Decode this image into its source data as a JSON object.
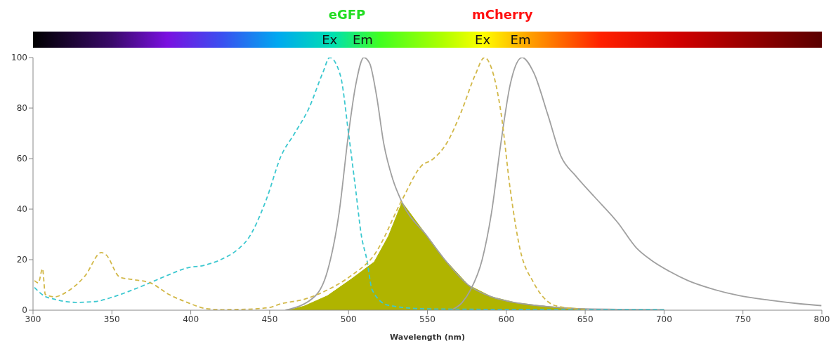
{
  "chart_data": {
    "type": "line",
    "xlabel": "Wavelength (nm)",
    "xlim": [
      300,
      800
    ],
    "xticks": [
      300,
      350,
      400,
      450,
      500,
      550,
      600,
      650,
      700,
      750,
      800
    ],
    "ylim": [
      0,
      100
    ],
    "yticks": [
      0,
      20,
      40,
      60,
      80,
      100
    ],
    "grid": false,
    "legend": false,
    "marker": "none",
    "annotations": [
      "eGFP",
      "mCherry",
      "Ex",
      "Em",
      "Ex",
      "Em"
    ],
    "series": [
      {
        "type": "area",
        "color": "#b0b400",
        "x": [
          462,
          471.8,
          486.6,
          501.5,
          516.3,
          525.3,
          533.9,
          549.8,
          561,
          576,
          590.6,
          605.5,
          625,
          650
        ],
        "values": [
          0,
          1.6,
          5.7,
          12.2,
          19.1,
          29.3,
          42.7,
          29.3,
          20,
          9.9,
          5.3,
          3,
          1.5,
          0.5
        ]
      },
      {
        "color": "#3cc8d0",
        "line_style": "dashed",
        "x": [
          300.9,
          307,
          314,
          327,
          339,
          351,
          363,
          374,
          386,
          398,
          408,
          419,
          431,
          436,
          448,
          457,
          465.8,
          474.7,
          483.7,
          488.1,
          494.8,
          500,
          504.5,
          508.2,
          511.6,
          515,
          525,
          550,
          600,
          700
        ],
        "values": [
          9,
          5.7,
          4.3,
          3.1,
          3.4,
          5.3,
          8,
          10.8,
          14,
          16.8,
          17.7,
          20,
          24.7,
          28,
          44,
          60.7,
          70,
          79.7,
          94,
          100,
          93,
          70,
          47.8,
          29.3,
          20,
          8,
          2,
          0.5,
          0.3,
          0.2
        ]
      },
      {
        "color": "#a0a0a0",
        "line_style": "solid",
        "x": [
          460,
          479,
          486.6,
          494,
          500,
          504.5,
          509.7,
          513.4,
          517.8,
          522.3,
          528.2,
          533.9,
          549.8,
          561,
          576,
          590.6,
          605.5,
          625,
          650,
          700
        ],
        "values": [
          0,
          5.7,
          15.4,
          38.5,
          70,
          89,
          100,
          97.7,
          84.7,
          66,
          51.5,
          42.7,
          29.3,
          20,
          9.9,
          5.3,
          3,
          1.5,
          0.5,
          0.2
        ]
      },
      {
        "color": "#d2b848",
        "line_style": "dashed",
        "x": [
          300.9,
          303.4,
          306,
          307.8,
          313.8,
          321,
          333,
          343.3,
          346.3,
          355,
          362.6,
          374.4,
          386.3,
          398,
          410,
          420,
          436.5,
          449.9,
          457,
          471.8,
          486.6,
          501.5,
          516.3,
          534.2,
          546,
          553.5,
          562.4,
          571.3,
          580.2,
          586.2,
          590.6,
          596.6,
          602.5,
          608.5,
          617.4,
          626.3,
          632.2,
          650
        ],
        "values": [
          11.7,
          10.8,
          16.4,
          6.2,
          5.3,
          7.1,
          13.6,
          22.8,
          21.9,
          13.1,
          12.2,
          10.8,
          6.2,
          3,
          0.6,
          0.2,
          0.4,
          1.1,
          2.5,
          4.3,
          8,
          13.6,
          21.9,
          44,
          57,
          59.8,
          66.3,
          78.3,
          93,
          100,
          95.8,
          78.3,
          47.8,
          24.7,
          10.8,
          3.4,
          1.6,
          0.3
        ]
      },
      {
        "color": "#a0a0a0",
        "line_style": "solid",
        "x": [
          565,
          572,
          577.3,
          584.7,
          590.6,
          596.6,
          602.5,
          610,
          617.4,
          626.3,
          634.8,
          643.8,
          655.7,
          670.5,
          682.4,
          691.4,
          703.3,
          715.2,
          730,
          748,
          767.3,
          786.6,
          799.7
        ],
        "values": [
          0,
          3,
          8,
          20,
          38.5,
          66.3,
          89.4,
          100,
          94,
          77.4,
          60.7,
          53.3,
          45,
          34.8,
          24.7,
          20,
          15.4,
          11.7,
          8.5,
          5.7,
          3.9,
          2.5,
          1.8
        ]
      }
    ]
  }
}
